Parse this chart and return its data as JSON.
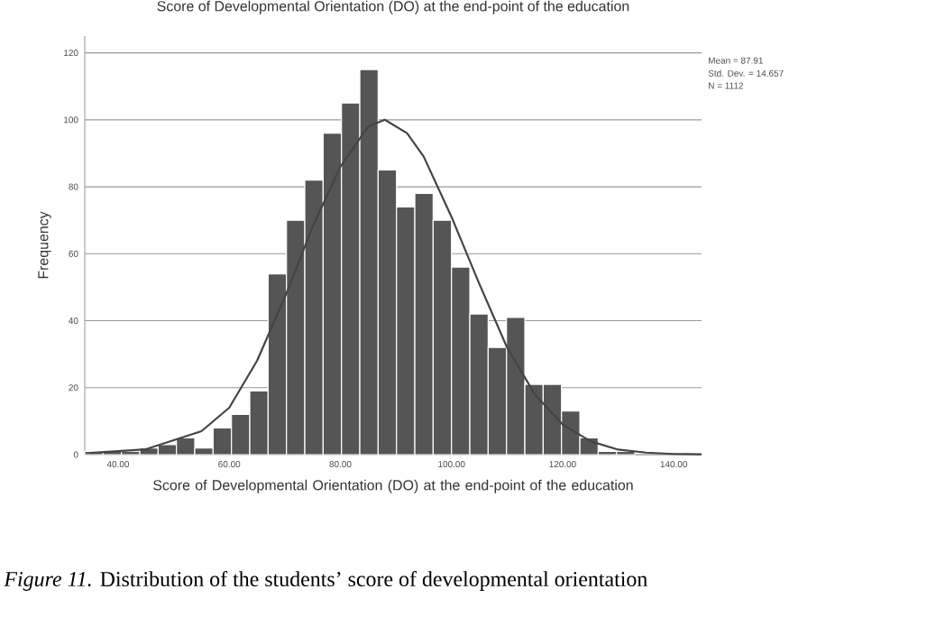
{
  "chart_data": {
    "type": "histogram",
    "title": "Score of Developmental Orientation (DO) at the end-point of the education",
    "xlabel": "Score of Developmental Orientation (DO) at the end-point of the education",
    "ylabel": "Frequency",
    "bins": [
      34.0,
      37.3,
      40.6,
      43.9,
      47.2,
      50.5,
      53.8,
      57.1,
      60.4,
      63.7,
      67.0,
      70.3,
      73.6,
      76.9,
      80.2,
      83.5,
      86.8,
      90.1,
      93.4,
      96.7,
      100.0,
      103.3,
      106.6,
      109.9,
      113.2,
      116.5,
      119.8,
      123.1,
      126.4,
      129.7,
      133.0
    ],
    "values": [
      1,
      1,
      1,
      2,
      3,
      5,
      2,
      8,
      12,
      19,
      54,
      70,
      82,
      96,
      105,
      115,
      85,
      74,
      78,
      70,
      56,
      42,
      32,
      41,
      21,
      21,
      13,
      5,
      1,
      1
    ],
    "color": "#555555",
    "series": [
      {
        "type": "line",
        "color": "#444444",
        "x": [
          35,
          45,
          55,
          60,
          65,
          70,
          75,
          80,
          85,
          88,
          92,
          95,
          100,
          105,
          110,
          115,
          120,
          125,
          130,
          135,
          140,
          145
        ],
        "values": [
          0.5,
          1.6,
          7,
          14,
          28,
          47,
          68,
          86,
          98,
          100,
          96,
          89,
          71,
          51,
          32,
          18,
          9,
          4,
          1.5,
          0.6,
          0.2,
          0.1
        ]
      }
    ],
    "xlim": [
      34,
      145
    ],
    "ylim": [
      0,
      125
    ],
    "xticks": [
      {
        "value": 40,
        "label": "40.00"
      },
      {
        "value": 60,
        "label": "60.00"
      },
      {
        "value": 80,
        "label": "80.00"
      },
      {
        "value": 100,
        "label": "100.00"
      },
      {
        "value": 120,
        "label": "120.00"
      },
      {
        "value": 140,
        "label": "140.00"
      }
    ],
    "yticks": [
      0,
      20,
      40,
      60,
      80,
      100,
      120
    ],
    "grid": "y",
    "annotations": [
      "Mean = 87.91",
      "Std. Dev. = 14.657",
      "N = 1112",
      "*Figure 11.* Distribution of the students’ score of developmental orientation"
    ]
  }
}
